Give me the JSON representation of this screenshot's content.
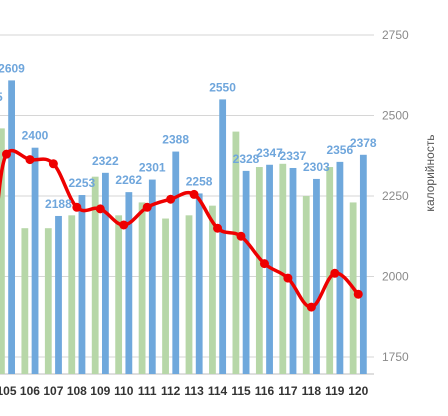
{
  "chart_data": {
    "type": "bar",
    "ylabel": "калорийность",
    "ylim": [
      1750,
      2750
    ],
    "yticks": [
      1750,
      2000,
      2250,
      2500,
      2750
    ],
    "grid": true,
    "categories": [
      "105",
      "106",
      "107",
      "108",
      "109",
      "110",
      "111",
      "112",
      "113",
      "114",
      "115",
      "116",
      "117",
      "118",
      "119",
      "120"
    ],
    "series": [
      {
        "role": "bar-secondary",
        "values": [
          2460,
          2150,
          2150,
          2190,
          2310,
          2190,
          2230,
          2180,
          2190,
          2220,
          2450,
          2340,
          2350,
          2250,
          2340,
          2230
        ]
      },
      {
        "role": "bar-primary",
        "values": [
          2609,
          2400,
          2188,
          2253,
          2322,
          2262,
          2301,
          2388,
          2258,
          2550,
          2328,
          2347,
          2337,
          2303,
          2356,
          2378
        ],
        "labels_shown": true
      },
      {
        "role": "line",
        "values": [
          2380,
          2363,
          2350,
          2215,
          2210,
          2160,
          2215,
          2240,
          2255,
          2150,
          2125,
          2040,
          1995,
          1905,
          2010,
          1945
        ]
      }
    ],
    "partial_label_left": "5"
  },
  "colors": {
    "bar_secondary": "#b7d7a8",
    "bar_primary": "#6fa8dc",
    "line": "#ee0000",
    "label": "#6fa8dc",
    "grid": "#d6d6d6"
  }
}
